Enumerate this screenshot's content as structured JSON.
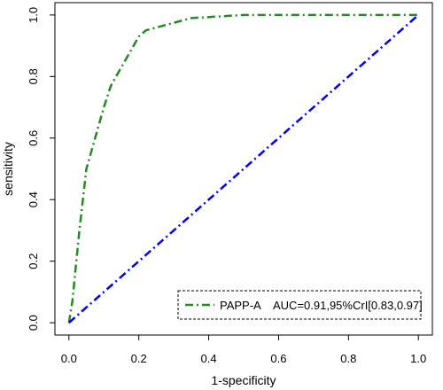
{
  "chart_data": {
    "type": "line",
    "title": "",
    "xlabel": "1-specificity",
    "ylabel": "sensitivity",
    "xlim": [
      -0.04,
      1.04
    ],
    "ylim": [
      -0.04,
      1.04
    ],
    "xticks": [
      0.0,
      0.2,
      0.4,
      0.6,
      0.8,
      1.0
    ],
    "xtick_labels": [
      "0.0",
      "0.2",
      "0.4",
      "0.6",
      "0.8",
      "1.0"
    ],
    "yticks": [
      0.0,
      0.2,
      0.4,
      0.6,
      0.8,
      1.0
    ],
    "ytick_labels": [
      "0.0",
      "0.2",
      "0.4",
      "0.6",
      "0.8",
      "1.0"
    ],
    "grid": false,
    "legend_position": "bottom-right",
    "series": [
      {
        "name": "PAPP-A",
        "line_style": "dash-dot",
        "color": "#228B22",
        "x": [
          0.0,
          0.01,
          0.03,
          0.05,
          0.07,
          0.1,
          0.12,
          0.15,
          0.18,
          0.2,
          0.22,
          0.35,
          0.5,
          0.75,
          1.0
        ],
        "y": [
          0.0,
          0.07,
          0.3,
          0.5,
          0.58,
          0.7,
          0.77,
          0.83,
          0.89,
          0.93,
          0.95,
          0.99,
          1.0,
          1.0,
          1.0
        ]
      },
      {
        "name": "",
        "line_style": "dash-dot",
        "color": "#0000FF",
        "x": [
          0.0,
          1.0
        ],
        "y": [
          0.0,
          1.0
        ]
      }
    ],
    "legend": {
      "label": "PAPP-A",
      "stat": "AUC=0.91,95%CrI[0.83,0.97]"
    }
  }
}
